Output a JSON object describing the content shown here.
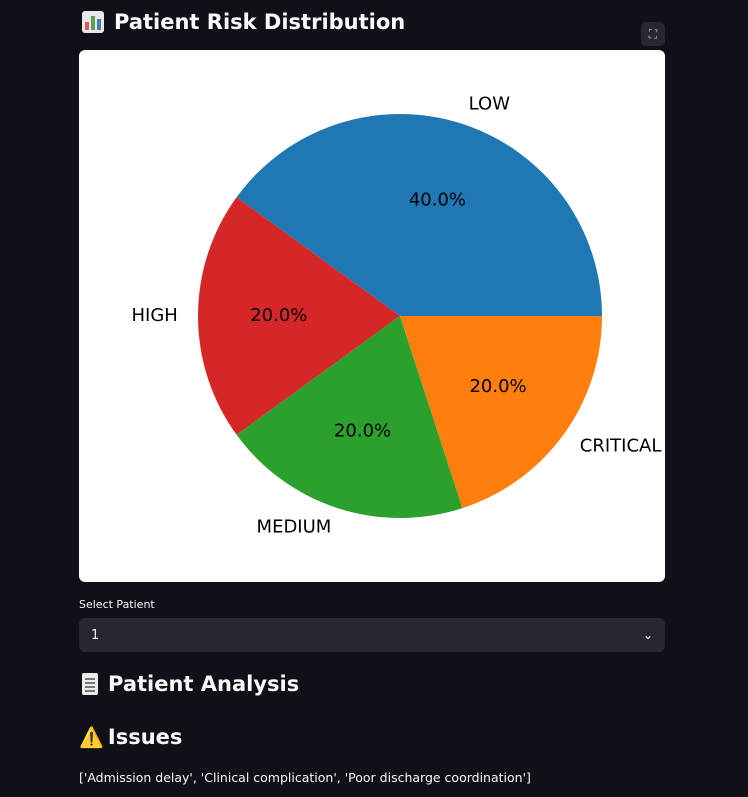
{
  "header": {
    "title": "Patient Risk Distribution",
    "icon": "bar-chart-icon"
  },
  "chart_data": {
    "type": "pie",
    "categories": [
      "LOW",
      "HIGH",
      "MEDIUM",
      "CRITICAL"
    ],
    "values": [
      40.0,
      20.0,
      20.0,
      20.0
    ],
    "labels": [
      "40.0%",
      "20.0%",
      "20.0%",
      "20.0%"
    ],
    "colors": [
      "#1f77b4",
      "#d62728",
      "#2ca02c",
      "#ff7f0e"
    ],
    "title": ""
  },
  "select": {
    "label": "Select Patient",
    "value": "1"
  },
  "analysis": {
    "title": "Patient Analysis",
    "icon": "document-icon"
  },
  "issues": {
    "title": "Issues",
    "icon": "warning-icon",
    "text": "['Admission delay', 'Clinical complication', 'Poor discharge coordination']"
  }
}
